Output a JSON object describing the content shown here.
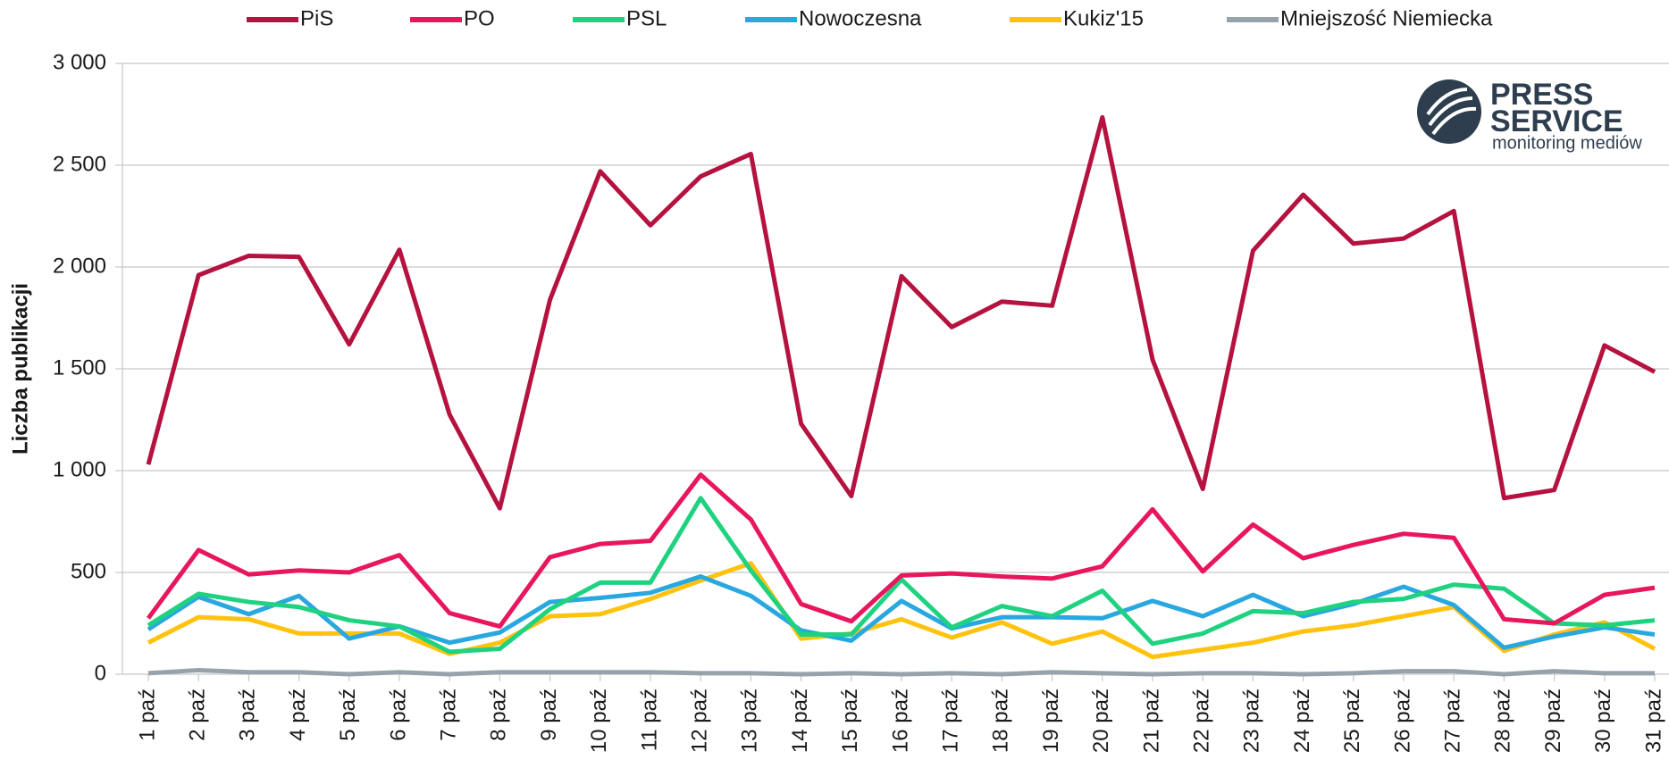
{
  "chart_data": {
    "type": "line",
    "y_label": "Liczba publikacji",
    "logo": {
      "line1": "PRESS",
      "line2": "SERVICE",
      "line3": "monitoring mediów"
    },
    "categories": [
      "1 paź",
      "2 paź",
      "3 paź",
      "4 paź",
      "5 paź",
      "6 paź",
      "7 paź",
      "8 paź",
      "9 paź",
      "10 paź",
      "11 paź",
      "12 paź",
      "13 paź",
      "14 paź",
      "15 paź",
      "16 paź",
      "17 paź",
      "18 paź",
      "19 paź",
      "20 paź",
      "21 paź",
      "22 paź",
      "23 paź",
      "24 paź",
      "25 paź",
      "26 paź",
      "27 paź",
      "28 paź",
      "29 paź",
      "30 paź",
      "31 paź"
    ],
    "series": [
      {
        "name": "PiS",
        "color": "#b5123f",
        "values": [
          1030,
          1960,
          2055,
          2050,
          1620,
          2085,
          1275,
          815,
          1840,
          2470,
          2205,
          2445,
          2555,
          1230,
          875,
          1955,
          1705,
          1830,
          1810,
          2735,
          1545,
          910,
          2080,
          2355,
          2115,
          2140,
          2275,
          865,
          905,
          1615,
          1485
        ]
      },
      {
        "name": "PO",
        "color": "#e8175d",
        "values": [
          275,
          610,
          490,
          510,
          500,
          585,
          300,
          235,
          575,
          640,
          655,
          980,
          760,
          345,
          260,
          485,
          495,
          480,
          470,
          530,
          810,
          505,
          735,
          570,
          635,
          690,
          670,
          270,
          250,
          390,
          425
        ]
      },
      {
        "name": "PSL",
        "color": "#1fd27f",
        "values": [
          240,
          395,
          355,
          330,
          265,
          235,
          110,
          125,
          320,
          450,
          450,
          865,
          510,
          195,
          195,
          465,
          230,
          335,
          285,
          410,
          150,
          200,
          310,
          300,
          355,
          370,
          440,
          420,
          250,
          240,
          265
        ]
      },
      {
        "name": "Nowoczesna",
        "color": "#29a8e0",
        "values": [
          220,
          380,
          295,
          385,
          175,
          235,
          155,
          205,
          355,
          375,
          400,
          480,
          385,
          215,
          165,
          360,
          225,
          280,
          280,
          275,
          360,
          285,
          390,
          285,
          345,
          430,
          340,
          130,
          185,
          230,
          195
        ]
      },
      {
        "name": "Kukiz'15",
        "color": "#ffc20e",
        "values": [
          155,
          280,
          270,
          200,
          200,
          200,
          100,
          155,
          285,
          295,
          370,
          460,
          545,
          175,
          200,
          270,
          180,
          255,
          150,
          210,
          85,
          120,
          155,
          210,
          240,
          285,
          330,
          115,
          195,
          255,
          125
        ]
      },
      {
        "name": "Mniejszość Niemiecka",
        "color": "#96a3ab",
        "values": [
          5,
          20,
          10,
          10,
          0,
          10,
          0,
          10,
          10,
          10,
          10,
          5,
          5,
          0,
          5,
          0,
          5,
          0,
          10,
          5,
          0,
          5,
          5,
          0,
          5,
          15,
          15,
          0,
          15,
          5,
          5
        ]
      }
    ],
    "ylim": [
      0,
      3000
    ],
    "yticks": [
      0,
      500,
      {
        "value": 1000,
        "label": "1 000"
      },
      {
        "value": 1500,
        "label": "1 500"
      },
      {
        "value": 2000,
        "label": "2 000"
      },
      {
        "value": 2500,
        "label": "2 500"
      },
      {
        "value": 3000,
        "label": "3 000"
      }
    ],
    "grid": true
  }
}
